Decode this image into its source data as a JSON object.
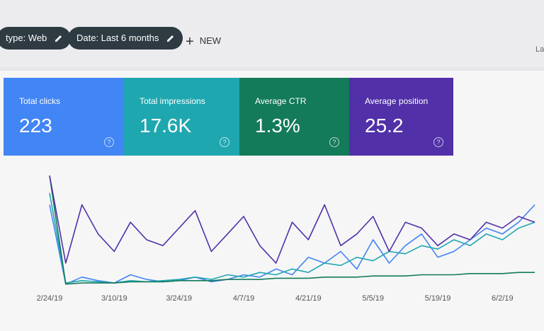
{
  "toolbar": {
    "chips": [
      "type: Web",
      "Date: Last 6 months"
    ],
    "new_button": "NEW",
    "right_text": "La"
  },
  "chart_data": {
    "type": "line",
    "categories": [
      "2/24/19",
      null,
      null,
      null,
      "3/10/19",
      null,
      null,
      null,
      "3/24/19",
      null,
      null,
      null,
      "4/7/19",
      null,
      null,
      null,
      "4/21/19",
      null,
      null,
      null,
      "5/5/19",
      null,
      null,
      null,
      "5/19/19",
      null,
      null,
      null,
      "6/2/19",
      null,
      null
    ],
    "ylim": [
      0,
      100
    ],
    "series": [
      {
        "name": "Total clicks",
        "total": "223",
        "color": "#4285f4",
        "values": [
          70,
          2,
          8,
          5,
          3,
          10,
          6,
          4,
          5,
          8,
          4,
          6,
          10,
          8,
          15,
          10,
          25,
          20,
          30,
          15,
          40,
          20,
          35,
          45,
          25,
          30,
          40,
          50,
          45,
          55,
          70
        ]
      },
      {
        "name": "Total impressions",
        "total": "17.6K",
        "color": "#1fa7b0",
        "values": [
          80,
          3,
          5,
          4,
          3,
          5,
          4,
          5,
          6,
          8,
          6,
          10,
          8,
          12,
          10,
          15,
          12,
          20,
          18,
          25,
          22,
          30,
          28,
          35,
          32,
          40,
          35,
          45,
          40,
          50,
          55
        ]
      },
      {
        "name": "Average CTR",
        "total": "1.3%",
        "color": "#137a5a",
        "values": [
          95,
          2,
          3,
          3,
          3,
          4,
          4,
          4,
          5,
          5,
          5,
          6,
          6,
          6,
          7,
          7,
          7,
          8,
          8,
          8,
          9,
          9,
          9,
          10,
          10,
          10,
          11,
          11,
          11,
          12,
          12
        ]
      },
      {
        "name": "Average position",
        "total": "25.2",
        "color": "#5130a8",
        "values": [
          95,
          20,
          70,
          45,
          30,
          55,
          40,
          35,
          50,
          65,
          30,
          45,
          60,
          35,
          20,
          55,
          40,
          70,
          35,
          45,
          60,
          30,
          55,
          50,
          35,
          45,
          40,
          55,
          50,
          60,
          55
        ]
      }
    ]
  }
}
